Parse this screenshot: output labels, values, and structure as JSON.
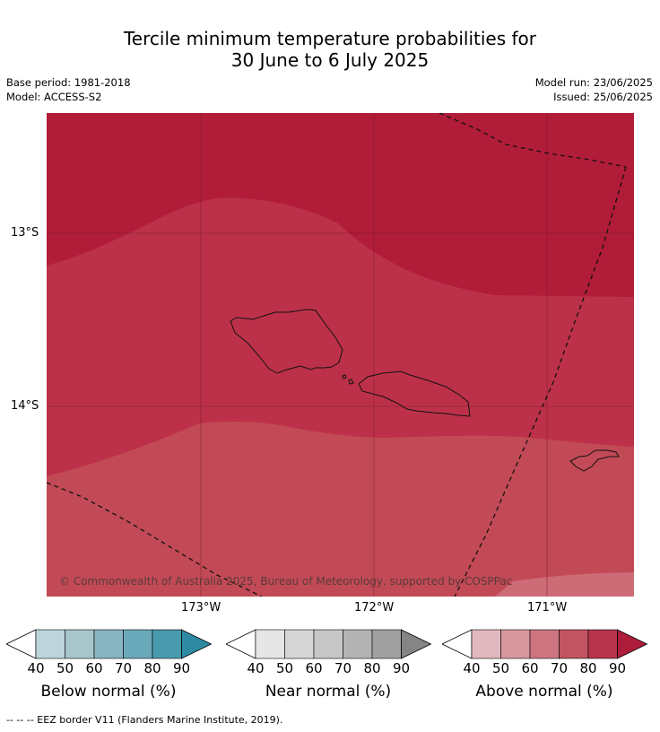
{
  "title_line1": "Tercile minimum temperature probabilities for",
  "title_line2": "30 June to 6 July 2025",
  "base_period": "Base period: 1981-2018",
  "model": "Model: ACCESS-S2",
  "model_run": "Model run: 23/06/2025",
  "issued": "Issued: 25/06/2025",
  "copyright": "© Commonwealth of Australia 2025, Bureau of Meteorology, supported by COSPPac",
  "lat_labels": [
    "13°S",
    "14°S"
  ],
  "lon_labels": [
    "173°W",
    "172°W",
    "171°W"
  ],
  "colorbars": [
    {
      "title": "Below normal (%)",
      "ticks": [
        "40",
        "50",
        "60",
        "70",
        "80",
        "90"
      ],
      "colors": [
        "#bed4db",
        "#a6c6cc",
        "#88b5c1",
        "#6aa9b9",
        "#4a9aae",
        "#2e8aa3"
      ]
    },
    {
      "title": "Near normal (%)",
      "ticks": [
        "40",
        "50",
        "60",
        "70",
        "80",
        "90"
      ],
      "colors": [
        "#e6e6e6",
        "#d7d7d7",
        "#c7c7c7",
        "#b3b3b3",
        "#a0a0a0",
        "#858585"
      ]
    },
    {
      "title": "Above normal (%)",
      "ticks": [
        "40",
        "50",
        "60",
        "70",
        "80",
        "90"
      ],
      "colors": [
        "#e2b8bf",
        "#d8979f",
        "#cc7580",
        "#c25462",
        "#b8354e",
        "#ad1c3a"
      ]
    }
  ],
  "footer": "--  --  -- EEZ border V11 (Flanders Marine Institute, 2019).",
  "map_colors": {
    "p90": "#b11c39",
    "p80": "#bc3149",
    "p70": "#c24a56",
    "p60": "#cd6c77"
  }
}
